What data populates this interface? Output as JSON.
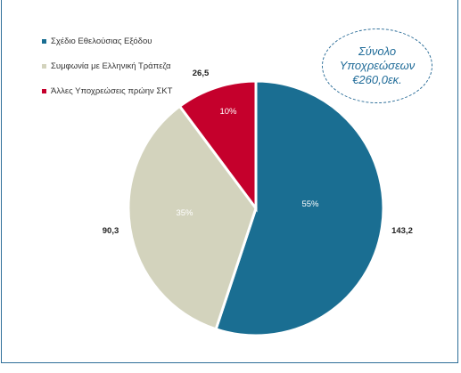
{
  "callout": {
    "line1": "Σύνολο",
    "line2": "Υποχρεώσεων",
    "line3": "€260,0εκ."
  },
  "chart_data": {
    "type": "pie",
    "categories": [
      "Σχέδιο Εθελούσιας Εξόδου",
      "Συμφωνία με Ελληνική Τράπεζα",
      "Άλλες Υποχρεώσεις πρώην ΣΚΤ"
    ],
    "values": [
      143.2,
      90.3,
      26.5
    ],
    "value_labels": [
      "143,2",
      "90,3",
      "26,5"
    ],
    "percent_labels": [
      "55%",
      "35%",
      "10%"
    ],
    "colors": [
      "#1a6e92",
      "#d3d3bd",
      "#c5002c"
    ],
    "legend_position": "top-left"
  }
}
